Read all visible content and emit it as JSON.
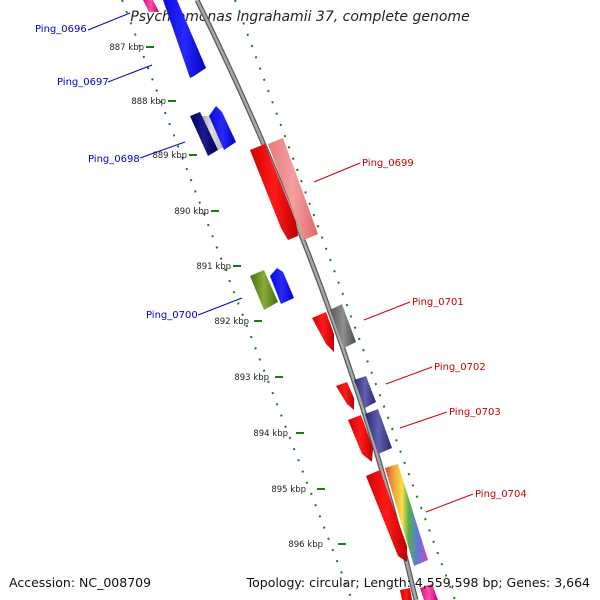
{
  "title": "Psychromonas ingrahamii 37, complete genome",
  "footer": {
    "accession": "Accession: NC_008709",
    "topology": "Topology: circular; Length: 4,559,598 bp; Genes: 3,664"
  },
  "ticks": [
    "887 kbp",
    "888 kbp",
    "889 kbp",
    "890 kbp",
    "891 kbp",
    "892 kbp",
    "893 kbp",
    "894 kbp",
    "895 kbp",
    "896 kbp"
  ],
  "genes_left": [
    "Ping_0696",
    "Ping_0697",
    "Ping_0698",
    "Ping_0700"
  ],
  "genes_right": [
    "Ping_0699",
    "Ping_0701",
    "Ping_0702",
    "Ping_0703",
    "Ping_0704"
  ],
  "colors": {
    "forward_strand_label": "#0000cc",
    "reverse_strand_label": "#cc0000",
    "backbone": "#888888",
    "tick_dots": "#1a7a1a"
  }
}
